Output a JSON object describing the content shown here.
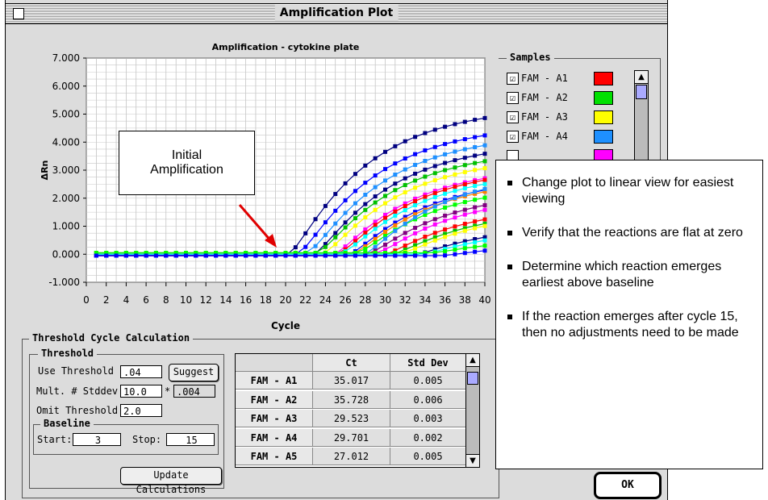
{
  "window": {
    "title": "Amplification Plot"
  },
  "chart_data": {
    "type": "line",
    "title": "Amplification - cytokine plate",
    "xlabel": "Cycle",
    "ylabel": "ΔRn",
    "xlim": [
      0,
      40
    ],
    "ylim": [
      -1.0,
      7.0
    ],
    "x_ticks": [
      "0",
      "2",
      "4",
      "6",
      "8",
      "10",
      "12",
      "14",
      "16",
      "18",
      "20",
      "22",
      "24",
      "26",
      "28",
      "30",
      "32",
      "34",
      "36",
      "38",
      "40"
    ],
    "y_ticks": [
      "7.000",
      "6.000",
      "5.000",
      "4.000",
      "3.000",
      "2.000",
      "1.000",
      "0.000",
      "-1.000"
    ],
    "grid": true,
    "series": [
      {
        "color": "#000080",
        "ct": 20.0,
        "plateau": 5.6
      },
      {
        "color": "#0000ff",
        "ct": 21.0,
        "plateau": 4.9
      },
      {
        "color": "#1e90ff",
        "ct": 22.0,
        "plateau": 4.5
      },
      {
        "color": "#000080",
        "ct": 22.5,
        "plateau": 4.3
      },
      {
        "color": "#ffff00",
        "ct": 23.5,
        "plateau": 3.7
      },
      {
        "color": "#00c000",
        "ct": 23.0,
        "plateau": 3.9
      },
      {
        "color": "#ff00ff",
        "ct": 24.5,
        "plateau": 3.4
      },
      {
        "color": "#ff0000",
        "ct": 25.0,
        "plateau": 3.3
      },
      {
        "color": "#00ffff",
        "ct": 25.5,
        "plateau": 3.1
      },
      {
        "color": "#0000ff",
        "ct": 26.0,
        "plateau": 3.0
      },
      {
        "color": "#ff8000",
        "ct": 26.5,
        "plateau": 2.9
      },
      {
        "color": "#00ff00",
        "ct": 27.0,
        "plateau": 2.6
      },
      {
        "color": "#1e90ff",
        "ct": 27.5,
        "plateau": 3.2
      },
      {
        "color": "#800080",
        "ct": 28.0,
        "plateau": 2.4
      },
      {
        "color": "#ff00ff",
        "ct": 29.0,
        "plateau": 2.2
      },
      {
        "color": "#ff0000",
        "ct": 29.5,
        "plateau": 1.9
      },
      {
        "color": "#00c000",
        "ct": 30.5,
        "plateau": 1.7
      },
      {
        "color": "#ffff00",
        "ct": 31.5,
        "plateau": 1.6
      },
      {
        "color": "#000080",
        "ct": 32.5,
        "plateau": 1.2
      },
      {
        "color": "#00ffff",
        "ct": 33.5,
        "plateau": 1.0
      },
      {
        "color": "#00ff00",
        "ct": 34.5,
        "plateau": 0.6
      },
      {
        "color": "#0000ff",
        "ct": 35.5,
        "plateau": 0.5
      }
    ]
  },
  "callout": {
    "line1": "Initial",
    "line2": "Amplification"
  },
  "samples": {
    "title": "Samples",
    "items": [
      {
        "label": "FAM - A1",
        "color": "#ff0000",
        "checked": "☑"
      },
      {
        "label": "FAM - A2",
        "color": "#00e000",
        "checked": "☑"
      },
      {
        "label": "FAM - A3",
        "color": "#ffff00",
        "checked": "☑"
      },
      {
        "label": "FAM - A4",
        "color": "#1e90ff",
        "checked": "☑"
      },
      {
        "label": "",
        "color": "#ff00ff",
        "checked": ""
      }
    ]
  },
  "threshold_calc": {
    "title": "Threshold Cycle Calculation",
    "threshold_title": "Threshold",
    "use_threshold_label": "Use Threshold :",
    "use_threshold_value": ".04",
    "suggest_label": "Suggest",
    "mult_label": "Mult. # Stddev :",
    "mult_value": "10.0",
    "star": "*",
    "mult_result": ".004",
    "omit_label": "Omit Threshold :",
    "omit_value": "2.0",
    "baseline_title": "Baseline",
    "start_label": "Start:",
    "start_value": "3",
    "stop_label": "Stop:",
    "stop_value": "15",
    "update_label": "Update Calculations"
  },
  "ct_table": {
    "headers": [
      "Ct",
      "Std Dev"
    ],
    "rows": [
      {
        "well": "FAM - A1",
        "ct": "35.017",
        "sd": "0.005"
      },
      {
        "well": "FAM - A2",
        "ct": "35.728",
        "sd": "0.006"
      },
      {
        "well": "FAM - A3",
        "ct": "29.523",
        "sd": "0.003"
      },
      {
        "well": "FAM - A4",
        "ct": "29.701",
        "sd": "0.002"
      },
      {
        "well": "FAM - A5",
        "ct": "27.012",
        "sd": "0.005"
      }
    ]
  },
  "ok_label": "OK",
  "notes": [
    "Change plot to linear view for easiest viewing",
    "Verify that the reactions are flat at zero",
    "Determine which reaction emerges earliest above baseline",
    "If the reaction emerges after cycle 15, then no adjustments need to be made"
  ]
}
